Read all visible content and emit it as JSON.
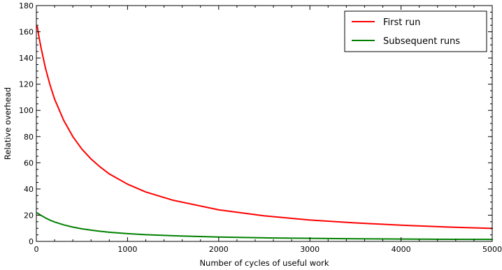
{
  "chart_data": {
    "type": "line",
    "title": "",
    "xlabel": "Number of cycles of useful work",
    "ylabel": "Relative overhead",
    "xlim": [
      0,
      5000
    ],
    "ylim": [
      0,
      180
    ],
    "xticks": [
      0,
      1000,
      2000,
      3000,
      4000,
      5000
    ],
    "yticks": [
      0,
      20,
      40,
      60,
      80,
      100,
      120,
      140,
      160,
      180
    ],
    "xtick_labels": [
      "0",
      "1000",
      "2000",
      "3000",
      "4000",
      "5000"
    ],
    "ytick_labels": [
      "0",
      "20",
      "40",
      "60",
      "80",
      "100",
      "120",
      "140",
      "160",
      "180"
    ],
    "grid": false,
    "legend_position": "top-right",
    "x": [
      10,
      25,
      50,
      100,
      150,
      200,
      300,
      400,
      500,
      600,
      700,
      800,
      1000,
      1200,
      1500,
      2000,
      2500,
      3000,
      3500,
      4000,
      4500,
      5000
    ],
    "series": [
      {
        "name": "First run",
        "color": "#ff0000",
        "values": [
          164.1,
          157.6,
          148.2,
          132.2,
          119.4,
          108.6,
          92.4,
          80.0,
          70.4,
          62.9,
          56.8,
          51.5,
          43.7,
          37.7,
          31.4,
          24.1,
          19.5,
          16.3,
          14.1,
          12.4,
          11.0,
          9.9
        ]
      },
      {
        "name": "Subsequent runs",
        "color": "#008000",
        "values": [
          21.7,
          21.0,
          19.9,
          17.9,
          16.2,
          14.8,
          12.6,
          10.9,
          9.6,
          8.6,
          7.7,
          7.0,
          5.9,
          5.1,
          4.3,
          3.3,
          2.7,
          2.3,
          2.0,
          1.8,
          1.6,
          1.5
        ]
      }
    ]
  }
}
